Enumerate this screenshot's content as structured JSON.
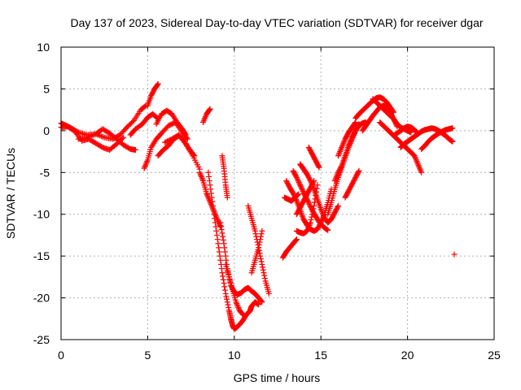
{
  "chart_data": {
    "type": "scatter",
    "title": "Day 137 of 2023, Sidereal Day-to-day VTEC variation (SDTVAR) for receiver dgar",
    "xlabel": "GPS time / hours",
    "ylabel": "SDTVAR / TECUs",
    "xlim": [
      0,
      25
    ],
    "ylim": [
      -25,
      10
    ],
    "xticks": [
      "0",
      "5",
      "10",
      "15",
      "20",
      "25"
    ],
    "yticks": [
      "10",
      "5",
      "0",
      "-5",
      "-10",
      "-15",
      "-20",
      "-25"
    ],
    "grid": true,
    "marker": "plus",
    "color": "#ff0000",
    "segments": [
      {
        "x": [
          0.0,
          0.3,
          0.6,
          1.0,
          1.5,
          2.0,
          2.5,
          3.0,
          3.4,
          3.8,
          4.2,
          4.6,
          4.9
        ],
        "y": [
          0.9,
          0.6,
          0.3,
          -0.2,
          -0.5,
          -0.4,
          -0.8,
          -1.0,
          -0.5,
          0.4,
          1.2,
          2.5,
          3.0
        ]
      },
      {
        "x": [
          0.0,
          0.4,
          0.8,
          1.2,
          1.6,
          2.0,
          2.4,
          2.8,
          3.2,
          3.6
        ],
        "y": [
          0.4,
          0.5,
          -0.1,
          -1.2,
          -1.0,
          -1.5,
          -2.0,
          -2.3,
          -1.6,
          -0.8
        ]
      },
      {
        "x": [
          1.0,
          1.5,
          2.0,
          2.4,
          2.8,
          3.2,
          3.6,
          4.0,
          4.3
        ],
        "y": [
          -1.0,
          -0.8,
          -0.4,
          0.2,
          -0.3,
          -1.0,
          -1.7,
          -2.2,
          -2.3
        ]
      },
      {
        "x": [
          4.0,
          4.3,
          4.7,
          5.0,
          5.3,
          5.6
        ],
        "y": [
          -0.5,
          0.2,
          0.8,
          1.6,
          2.0,
          1.4
        ]
      },
      {
        "x": [
          4.8,
          5.0,
          5.2,
          5.5,
          5.8,
          6.2,
          6.6,
          7.0,
          7.3
        ],
        "y": [
          -4.5,
          -3.5,
          -2.0,
          -1.0,
          -0.3,
          0.6,
          1.0,
          -0.2,
          -1.0
        ]
      },
      {
        "x": [
          5.0,
          5.2,
          5.4,
          5.6
        ],
        "y": [
          3.0,
          4.2,
          5.0,
          5.6
        ]
      },
      {
        "x": [
          5.5,
          5.8,
          6.1,
          6.4,
          6.7,
          7.0,
          7.2
        ],
        "y": [
          0.8,
          2.0,
          2.4,
          2.0,
          1.0,
          0.2,
          -0.5
        ]
      },
      {
        "x": [
          5.6,
          5.9,
          6.2,
          6.5,
          6.8,
          7.1,
          7.4,
          7.7
        ],
        "y": [
          -3.0,
          -2.3,
          -1.8,
          -1.0,
          -0.6,
          -1.2,
          -2.2,
          -3.0
        ]
      },
      {
        "x": [
          6.0,
          6.4,
          6.8,
          7.2,
          7.6,
          8.0
        ],
        "y": [
          -1.4,
          -1.0,
          -0.5,
          -1.6,
          -3.0,
          -4.6
        ]
      },
      {
        "x": [
          8.0,
          8.2,
          8.4,
          8.6,
          8.8,
          9.0,
          9.2
        ],
        "y": [
          -5.0,
          -6.0,
          -7.5,
          -8.5,
          -9.5,
          -10.5,
          -11.5
        ]
      },
      {
        "x": [
          8.2,
          8.4,
          8.6
        ],
        "y": [
          1.0,
          2.0,
          2.6
        ]
      },
      {
        "x": [
          8.5,
          8.7,
          8.9,
          9.1,
          9.3,
          9.5,
          9.7,
          9.8,
          9.9,
          10.0,
          10.1,
          10.3,
          10.5,
          10.7,
          10.9,
          11.0,
          11.2,
          11.4
        ],
        "y": [
          -5.0,
          -8.0,
          -11.0,
          -14.0,
          -17.0,
          -19.5,
          -21.5,
          -22.5,
          -23.3,
          -23.7,
          -23.6,
          -23.2,
          -22.7,
          -22.0,
          -21.6,
          -21.0,
          -20.5,
          -20.8
        ]
      },
      {
        "x": [
          9.2,
          9.4,
          9.6,
          9.8,
          10.0,
          10.2,
          10.4,
          10.6,
          10.8,
          11.0,
          11.2,
          11.4,
          11.6
        ],
        "y": [
          -11.0,
          -13.5,
          -16.5,
          -18.5,
          -19.3,
          -19.6,
          -19.4,
          -19.0,
          -18.8,
          -19.2,
          -19.5,
          -20.0,
          -20.5
        ]
      },
      {
        "x": [
          9.3,
          9.4,
          9.5,
          9.6
        ],
        "y": [
          -3.0,
          -4.5,
          -6.5,
          -8.0
        ]
      },
      {
        "x": [
          9.5,
          9.7,
          9.9,
          10.1,
          10.3,
          10.5
        ],
        "y": [
          -16.0,
          -17.5,
          -19.0,
          -20.5,
          -21.5,
          -22.0
        ]
      },
      {
        "x": [
          10.8,
          11.0,
          11.2,
          11.4,
          11.6,
          11.8,
          12.0
        ],
        "y": [
          -9.0,
          -10.5,
          -12.0,
          -14.0,
          -16.0,
          -18.0,
          -19.5
        ]
      },
      {
        "x": [
          11.0,
          11.2,
          11.4,
          11.6
        ],
        "y": [
          -17.0,
          -15.5,
          -14.0,
          -12.0
        ]
      },
      {
        "x": [
          12.8,
          13.0,
          13.2,
          13.4,
          13.6
        ],
        "y": [
          -15.2,
          -14.5,
          -14.0,
          -13.5,
          -13.0
        ]
      },
      {
        "x": [
          12.9,
          13.1,
          13.3,
          13.5,
          13.7
        ],
        "y": [
          -8.0,
          -8.2,
          -8.4,
          -8.0,
          -7.6
        ]
      },
      {
        "x": [
          13.0,
          13.2,
          13.4,
          13.6,
          13.8,
          14.0,
          14.2,
          14.4,
          14.6,
          14.8,
          15.0,
          15.2,
          15.4,
          15.6
        ],
        "y": [
          -6.0,
          -6.8,
          -7.5,
          -8.4,
          -9.5,
          -10.6,
          -11.3,
          -11.8,
          -12.0,
          -11.8,
          -11.0,
          -10.0,
          -8.6,
          -7.0
        ]
      },
      {
        "x": [
          13.4,
          13.6,
          13.8,
          14.0,
          14.2,
          14.4,
          14.6,
          14.8,
          15.0,
          15.2,
          15.4
        ],
        "y": [
          -4.8,
          -5.6,
          -6.5,
          -7.4,
          -8.2,
          -9.1,
          -9.9,
          -10.6,
          -11.2,
          -11.6,
          -11.9
        ]
      },
      {
        "x": [
          13.6,
          13.8,
          14.0,
          14.2,
          14.4,
          14.6
        ],
        "y": [
          -10.0,
          -9.2,
          -8.4,
          -7.6,
          -6.8,
          -6.0
        ]
      },
      {
        "x": [
          13.8,
          14.0,
          14.2,
          14.4,
          14.6,
          14.8,
          15.0,
          15.2,
          15.4,
          15.6,
          15.8,
          16.0
        ],
        "y": [
          -4.0,
          -4.6,
          -5.2,
          -6.0,
          -7.0,
          -8.2,
          -9.4,
          -10.4,
          -11.0,
          -10.6,
          -9.8,
          -9.0
        ]
      },
      {
        "x": [
          13.6,
          13.8,
          14.0,
          14.2,
          14.4,
          14.6,
          14.8
        ],
        "y": [
          -12.0,
          -12.2,
          -12.3,
          -12.0,
          -11.0,
          -9.0,
          -6.5
        ]
      },
      {
        "x": [
          14.3,
          14.5,
          14.7,
          14.9
        ],
        "y": [
          -2.0,
          -2.8,
          -3.6,
          -4.4
        ]
      },
      {
        "x": [
          15.4,
          15.6,
          15.8,
          16.0,
          16.2,
          16.4,
          16.6,
          16.8,
          17.0,
          17.2
        ],
        "y": [
          -10.0,
          -8.6,
          -7.0,
          -5.6,
          -4.4,
          -3.2,
          -2.0,
          -1.0,
          0.0,
          0.8
        ]
      },
      {
        "x": [
          15.8,
          16.0,
          16.2,
          16.4,
          16.6,
          16.8,
          17.0,
          17.2,
          17.4,
          17.6
        ],
        "y": [
          -6.0,
          -5.0,
          -4.2,
          -3.0,
          -1.8,
          -0.8,
          0.0,
          0.6,
          0.9,
          1.0
        ]
      },
      {
        "x": [
          16.0,
          16.2,
          16.4,
          16.6,
          16.8,
          17.0
        ],
        "y": [
          -3.0,
          -2.0,
          -1.0,
          -0.2,
          0.4,
          1.0
        ]
      },
      {
        "x": [
          16.4,
          16.6,
          16.8,
          17.0,
          17.2
        ],
        "y": [
          -8.0,
          -7.2,
          -6.4,
          -5.6,
          -4.8
        ]
      },
      {
        "x": [
          17.0,
          17.2,
          17.4,
          17.6,
          17.8,
          18.0,
          18.2,
          18.4,
          18.6,
          18.8,
          19.0,
          19.2
        ],
        "y": [
          1.5,
          2.0,
          2.4,
          2.8,
          3.2,
          3.6,
          3.9,
          4.0,
          3.8,
          3.4,
          2.8,
          2.2
        ]
      },
      {
        "x": [
          17.4,
          17.6,
          17.8,
          18.0,
          18.2,
          18.4,
          18.6,
          18.8,
          19.0,
          19.2,
          19.4
        ],
        "y": [
          0.0,
          0.6,
          1.2,
          1.8,
          2.3,
          2.8,
          3.0,
          2.8,
          2.2,
          1.4,
          0.5
        ]
      },
      {
        "x": [
          18.0,
          18.2,
          18.4,
          18.6,
          18.8,
          19.0,
          19.2,
          19.4,
          19.6,
          19.8,
          20.0,
          20.2
        ],
        "y": [
          3.8,
          3.4,
          3.0,
          2.6,
          2.2,
          1.8,
          1.4,
          0.8,
          0.4,
          0.2,
          0.0,
          -0.2
        ]
      },
      {
        "x": [
          18.4,
          18.6,
          18.8,
          19.0,
          19.2,
          19.4,
          19.6,
          19.8,
          20.0,
          20.2,
          20.4,
          20.6,
          20.8
        ],
        "y": [
          1.0,
          0.6,
          0.2,
          -0.2,
          -0.6,
          -1.0,
          -1.4,
          -1.8,
          -2.2,
          -2.6,
          -3.0,
          -4.0,
          -5.0
        ]
      },
      {
        "x": [
          19.2,
          19.4,
          19.6,
          19.8,
          20.0,
          20.2,
          20.4,
          20.6
        ],
        "y": [
          -0.6,
          -0.3,
          0.0,
          0.3,
          0.5,
          0.4,
          0.1,
          -0.3
        ]
      },
      {
        "x": [
          19.6,
          19.8,
          20.0,
          20.2,
          20.4,
          20.6,
          20.8,
          21.0,
          21.2,
          21.4,
          21.6,
          21.8,
          22.0,
          22.2,
          22.4,
          22.6
        ],
        "y": [
          -2.0,
          -1.6,
          -1.3,
          -1.0,
          -0.7,
          -0.4,
          -0.1,
          0.1,
          0.2,
          0.3,
          0.2,
          0.0,
          -0.3,
          -0.6,
          -1.0,
          -1.3
        ]
      },
      {
        "x": [
          20.8,
          21.0,
          21.2,
          21.4,
          21.6,
          21.8,
          22.0,
          22.2,
          22.4,
          22.6
        ],
        "y": [
          -2.2,
          -1.8,
          -1.3,
          -0.9,
          -0.6,
          -0.3,
          -0.1,
          0.1,
          0.2,
          0.3
        ]
      },
      {
        "x": [
          22.7
        ],
        "y": [
          -14.8
        ]
      }
    ]
  }
}
